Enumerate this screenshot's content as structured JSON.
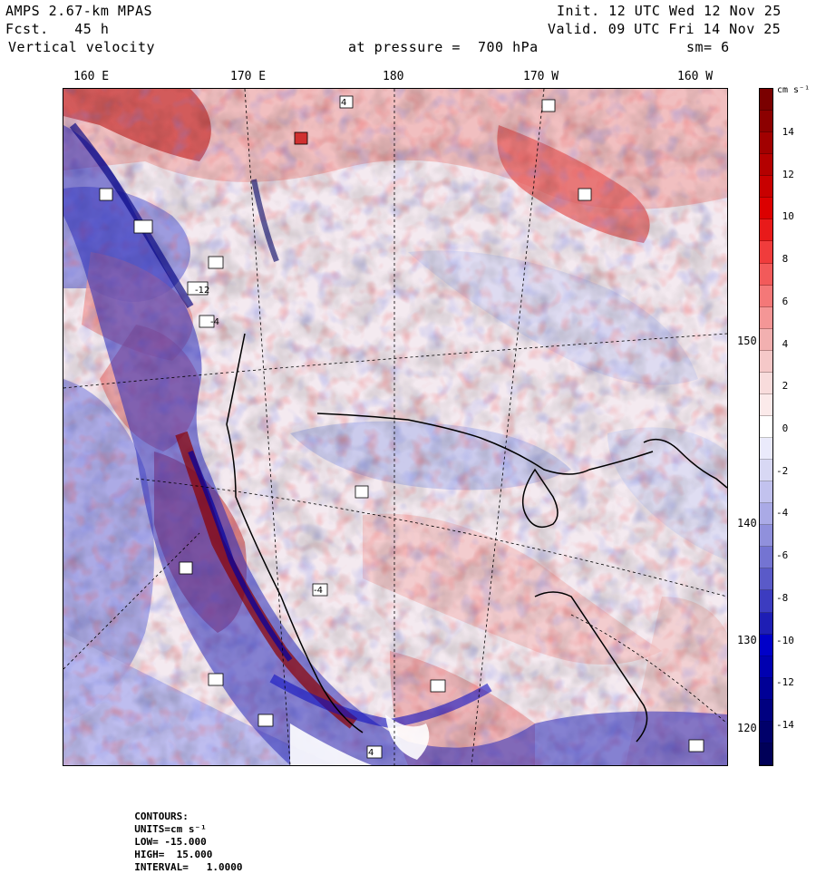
{
  "header": {
    "model": "AMPS 2.67-km MPAS",
    "forecast": "Fcst.   45 h",
    "field": "Vertical velocity",
    "init": "Init. 12 UTC Wed 12 Nov 25",
    "valid": "Valid. 09 UTC Fri 14 Nov 25",
    "level": "at pressure =  700 hPa",
    "smoothing": "sm= 6"
  },
  "longitude_labels": [
    "160 E",
    "170 E",
    "180",
    "170 W",
    "160 W"
  ],
  "latitude_labels": [
    "150 W",
    "140 W",
    "130 W",
    "120 W"
  ],
  "colorbar": {
    "unit_label": "cm s⁻¹",
    "tick_labels": [
      "14",
      "12",
      "10",
      "8",
      "6",
      "4",
      "2",
      "0",
      "-2",
      "-4",
      "-6",
      "-8",
      "-10",
      "-12",
      "-14"
    ],
    "colors": [
      "#7a0000",
      "#8c0000",
      "#a10000",
      "#b40000",
      "#c80000",
      "#dc0000",
      "#e81a1a",
      "#f03c3c",
      "#f25a5a",
      "#f47878",
      "#f49696",
      "#f2b0b0",
      "#f5c8c8",
      "#f8dcdc",
      "#fbeaea",
      "#ffffff",
      "#eaeafb",
      "#d8d8f4",
      "#c2c2ee",
      "#aaaae6",
      "#9090dc",
      "#7474d2",
      "#5a5ac8",
      "#3c3cc0",
      "#1e1eb4",
      "#0000c8",
      "#0000b0",
      "#000096",
      "#000080",
      "#00006a",
      "#000058"
    ]
  },
  "footer": {
    "contours_label": "CONTOURS:",
    "units": "UNITS=cm s⁻¹",
    "low": "LOW= -15.000",
    "high": "HIGH=  15.000",
    "interval": "INTERVAL=   1.0000"
  },
  "map_annotations": [
    "-4",
    "4",
    "-12",
    "-4",
    "4"
  ]
}
